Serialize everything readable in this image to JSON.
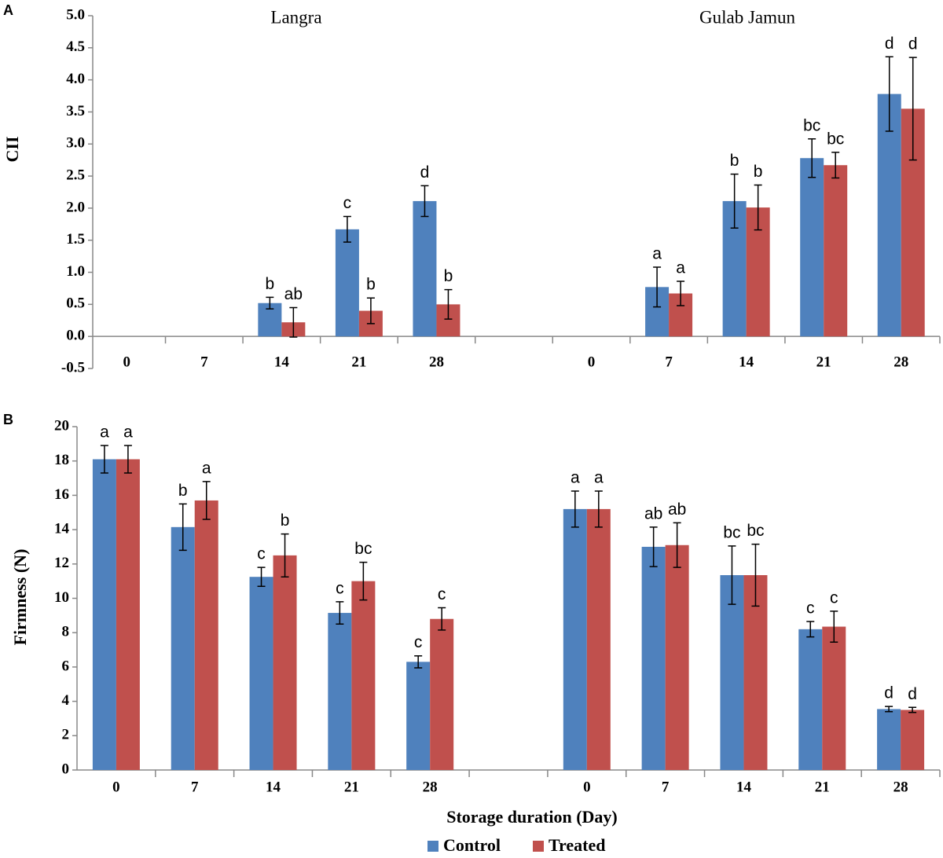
{
  "chart_data": [
    {
      "type": "bar",
      "panel": "A",
      "ylabel": "CII",
      "group_labels": [
        "Langra",
        "Gulab Jamun"
      ],
      "categories": [
        "0",
        "7",
        "14",
        "21",
        "28",
        null,
        "0",
        "7",
        "14",
        "21",
        "28"
      ],
      "ylim": [
        -0.5,
        5.0
      ],
      "yticks": [
        -0.5,
        {
          "value": 0,
          "label": "0.0"
        },
        0.5,
        {
          "value": 1,
          "label": "1.0"
        },
        1.5,
        {
          "value": 2,
          "label": "2.0"
        },
        2.5,
        {
          "value": 3,
          "label": "3.0"
        },
        3.5,
        {
          "value": 4,
          "label": "4.0"
        },
        4.5,
        {
          "value": 5,
          "label": "5.0"
        }
      ],
      "series": [
        {
          "name": "Control",
          "color": "#4f81bd",
          "values": [
            0,
            0,
            0.52,
            1.67,
            2.11,
            null,
            0,
            0.77,
            2.11,
            2.78,
            3.78
          ],
          "errors": [
            null,
            null,
            0.09,
            0.2,
            0.24,
            null,
            null,
            0.31,
            0.42,
            0.3,
            0.58
          ],
          "labels": [
            null,
            null,
            "b",
            "c",
            "d",
            null,
            null,
            "a",
            "b",
            "bc",
            "d"
          ]
        },
        {
          "name": "Treated",
          "color": "#c0504d",
          "values": [
            0,
            0,
            0.22,
            0.4,
            0.5,
            null,
            0,
            0.67,
            2.01,
            2.67,
            3.55
          ],
          "errors": [
            null,
            null,
            0.23,
            0.2,
            0.23,
            null,
            null,
            0.19,
            0.35,
            0.2,
            0.8
          ],
          "labels": [
            null,
            null,
            "ab",
            "b",
            "b",
            null,
            null,
            "a",
            "b",
            "bc",
            "d"
          ]
        }
      ]
    },
    {
      "type": "bar",
      "panel": "B",
      "ylabel": "Firmness (N)",
      "xlabel": "Storage duration (Day)",
      "categories": [
        "0",
        "7",
        "14",
        "21",
        "28",
        null,
        "0",
        "7",
        "14",
        "21",
        "28"
      ],
      "ylim": [
        0,
        20
      ],
      "yticks": [
        0,
        2,
        4,
        6,
        8,
        10,
        12,
        14,
        16,
        18,
        20
      ],
      "series": [
        {
          "color": "#4f81bd",
          "values": [
            18.1,
            14.15,
            11.25,
            9.15,
            6.3,
            null,
            15.2,
            13.0,
            11.35,
            8.2,
            3.55
          ],
          "errors": [
            0.8,
            1.35,
            0.55,
            0.65,
            0.35,
            null,
            1.05,
            1.15,
            1.7,
            0.45,
            0.15
          ],
          "labels": [
            "a",
            "b",
            "c",
            "c",
            "c",
            null,
            "a",
            "ab",
            "bc",
            "c",
            "d"
          ]
        },
        {
          "color": "#c0504d",
          "values": [
            18.1,
            15.7,
            12.5,
            11.0,
            8.8,
            null,
            15.2,
            13.1,
            11.35,
            8.35,
            3.5
          ],
          "errors": [
            0.8,
            1.1,
            1.25,
            1.1,
            0.65,
            null,
            1.05,
            1.3,
            1.8,
            0.9,
            0.15
          ],
          "labels": [
            "a",
            "a",
            "b",
            "bc",
            "c",
            null,
            "a",
            "ab",
            "bc",
            "c",
            "d"
          ]
        }
      ]
    }
  ]
}
